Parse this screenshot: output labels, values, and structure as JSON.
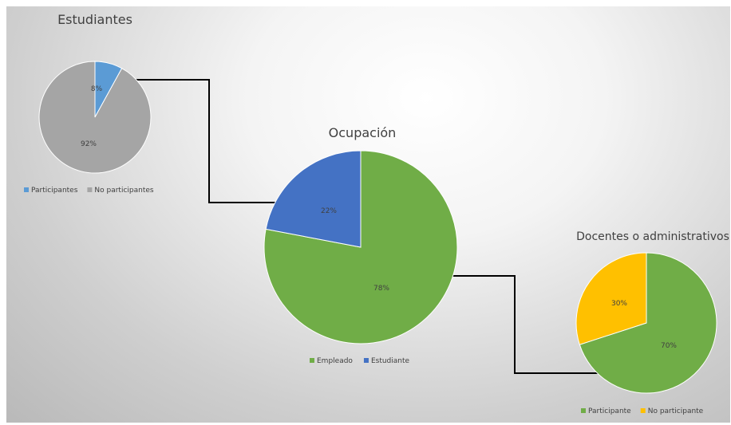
{
  "colors": {
    "blue": "#4a7fc7",
    "gray": "#a5a5a5",
    "green": "#70ad47",
    "yellow": "#ffc000",
    "connector": "#000000"
  },
  "chart_data": [
    {
      "type": "pie",
      "title": "Estudiantes",
      "legend": "bottom",
      "slices": [
        {
          "name": "Participantes",
          "value": 8,
          "label": "8%",
          "color": "#5b9bd5"
        },
        {
          "name": "No participantes",
          "value": 92,
          "label": "92%",
          "color": "#a5a5a5"
        }
      ]
    },
    {
      "type": "pie",
      "title": "Ocupación",
      "legend": "bottom",
      "slices": [
        {
          "name": "Empleado",
          "value": 78,
          "label": "78%",
          "color": "#70ad47"
        },
        {
          "name": "Estudiante",
          "value": 22,
          "label": "22%",
          "color": "#4472c4"
        }
      ]
    },
    {
      "type": "pie",
      "title": "Docentes o administrativos",
      "legend": "bottom",
      "slices": [
        {
          "name": "Participante",
          "value": 70,
          "label": "70%",
          "color": "#70ad47"
        },
        {
          "name": "No participante",
          "value": 30,
          "label": "30%",
          "color": "#ffc000"
        }
      ]
    }
  ]
}
